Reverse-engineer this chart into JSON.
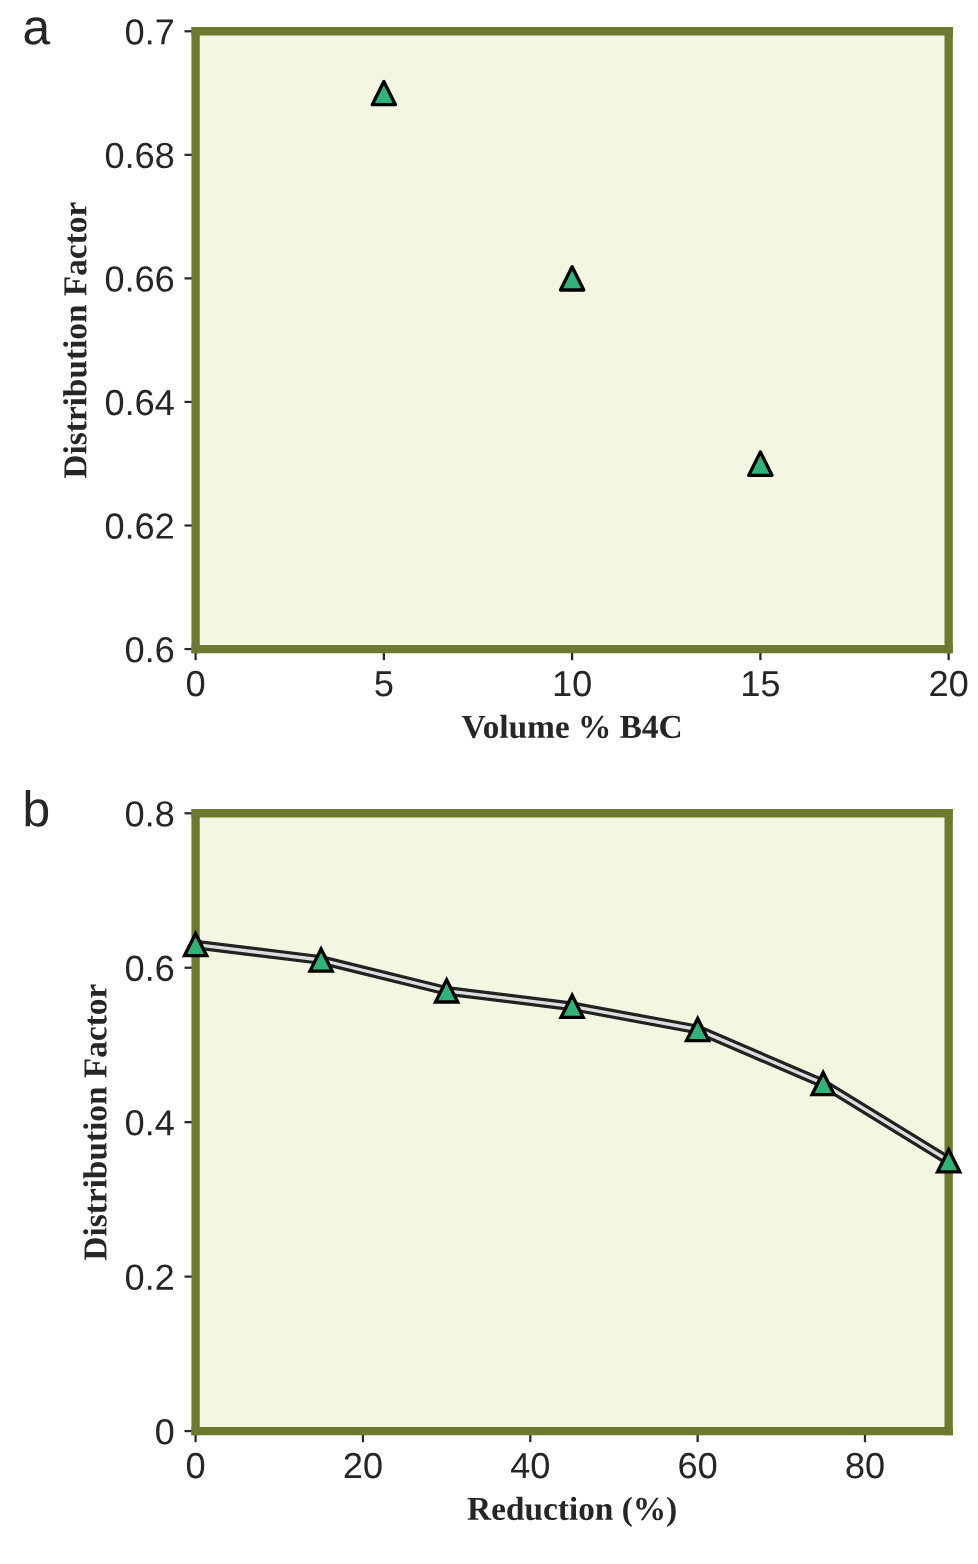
{
  "chart_data": [
    {
      "type": "scatter",
      "title": "a",
      "xlabel": "Volume % B4C",
      "ylabel": "Distribution Factor",
      "x": [
        5,
        10,
        15
      ],
      "series": [
        {
          "color": "#2fb37a",
          "values": [
            0.69,
            0.66,
            0.63
          ]
        }
      ],
      "xlim": [
        0,
        20
      ],
      "xticks": [
        0,
        5,
        10,
        15,
        20
      ],
      "ylim": [
        0.6,
        0.7
      ],
      "yticks": [
        0.6,
        0.62,
        0.64,
        0.66,
        0.68,
        0.7
      ],
      "marker": "triangle",
      "grid": false,
      "legend": false
    },
    {
      "type": "line",
      "title": "b",
      "xlabel": "Reduction (%)",
      "ylabel": "Distribution Factor",
      "x": [
        0,
        15,
        30,
        45,
        60,
        75,
        90
      ],
      "series": [
        {
          "color": "#2fb37a",
          "values": [
            0.63,
            0.61,
            0.57,
            0.55,
            0.52,
            0.45,
            0.35
          ]
        }
      ],
      "xlim": [
        0,
        90
      ],
      "xticks": [
        0,
        20,
        40,
        60,
        80
      ],
      "ylim": [
        0,
        0.8
      ],
      "yticks": [
        0,
        0.2,
        0.4,
        0.6,
        0.8
      ],
      "marker": "triangle",
      "line_style": "solid",
      "grid": false,
      "legend": false
    }
  ]
}
